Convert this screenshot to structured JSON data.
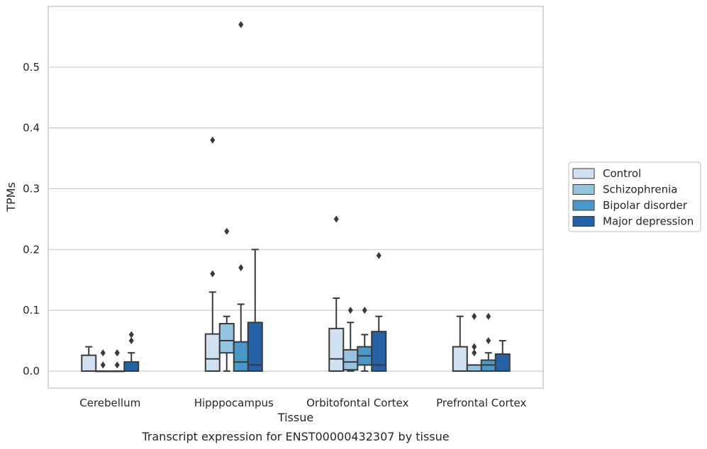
{
  "chart_data": {
    "type": "box",
    "xlabel": "Tissue",
    "ylabel": "TPMs",
    "caption": "Transcript expression for ENST00000432307 by tissue",
    "categories": [
      "Cerebellum",
      "Hipppocampus",
      "Orbitofontal Cortex",
      "Prefrontal Cortex"
    ],
    "ylim": [
      -0.028,
      0.6
    ],
    "yticks": [
      {
        "value": 0.0,
        "label": "0.0"
      },
      {
        "value": 0.1,
        "label": "0.1"
      },
      {
        "value": 0.2,
        "label": "0.2"
      },
      {
        "value": 0.3,
        "label": "0.3"
      },
      {
        "value": 0.4,
        "label": "0.4"
      },
      {
        "value": 0.5,
        "label": "0.5"
      }
    ],
    "grid": "horizontal",
    "legend_position": "right",
    "series": [
      {
        "name": "Control",
        "color": "#d0e1f2",
        "boxes": [
          {
            "whislo": 0.0,
            "q1": 0.0,
            "med": 0.0,
            "q3": 0.026,
            "whishi": 0.04,
            "fliers": []
          },
          {
            "whislo": 0.0,
            "q1": 0.0,
            "med": 0.02,
            "q3": 0.061,
            "whishi": 0.13,
            "fliers": [
              0.16,
              0.38
            ]
          },
          {
            "whislo": 0.0,
            "q1": 0.0,
            "med": 0.02,
            "q3": 0.07,
            "whishi": 0.12,
            "fliers": [
              0.25
            ]
          },
          {
            "whislo": 0.0,
            "q1": 0.0,
            "med": 0.0,
            "q3": 0.04,
            "whishi": 0.09,
            "fliers": []
          }
        ]
      },
      {
        "name": "Schizophrenia",
        "color": "#94c4df",
        "boxes": [
          {
            "whislo": 0.0,
            "q1": 0.0,
            "med": 0.0,
            "q3": 0.0,
            "whishi": 0.0,
            "fliers": [
              0.01,
              0.03
            ]
          },
          {
            "whislo": 0.0,
            "q1": 0.03,
            "med": 0.05,
            "q3": 0.078,
            "whishi": 0.09,
            "fliers": [
              0.23
            ]
          },
          {
            "whislo": 0.0,
            "q1": 0.002,
            "med": 0.015,
            "q3": 0.035,
            "whishi": 0.08,
            "fliers": [
              0.1
            ]
          },
          {
            "whislo": 0.0,
            "q1": 0.0,
            "med": 0.0,
            "q3": 0.01,
            "whishi": 0.01,
            "fliers": [
              0.03,
              0.04,
              0.09
            ]
          }
        ]
      },
      {
        "name": "Bipolar disorder",
        "color": "#4a98c9",
        "boxes": [
          {
            "whislo": 0.0,
            "q1": 0.0,
            "med": 0.0,
            "q3": 0.0,
            "whishi": 0.0,
            "fliers": [
              0.01,
              0.03,
              0.03
            ]
          },
          {
            "whislo": 0.0,
            "q1": 0.0,
            "med": 0.015,
            "q3": 0.048,
            "whishi": 0.11,
            "fliers": [
              0.17,
              0.57
            ]
          },
          {
            "whislo": 0.0,
            "q1": 0.01,
            "med": 0.025,
            "q3": 0.04,
            "whishi": 0.06,
            "fliers": [
              0.1
            ]
          },
          {
            "whislo": 0.0,
            "q1": 0.0,
            "med": 0.01,
            "q3": 0.018,
            "whishi": 0.03,
            "fliers": [
              0.05,
              0.09
            ]
          }
        ]
      },
      {
        "name": "Major depression",
        "color": "#2362a7",
        "boxes": [
          {
            "whislo": 0.0,
            "q1": 0.0,
            "med": 0.0,
            "q3": 0.015,
            "whishi": 0.03,
            "fliers": [
              0.05,
              0.06
            ]
          },
          {
            "whislo": 0.0,
            "q1": 0.0,
            "med": 0.01,
            "q3": 0.08,
            "whishi": 0.2,
            "fliers": []
          },
          {
            "whislo": 0.0,
            "q1": 0.0,
            "med": 0.01,
            "q3": 0.065,
            "whishi": 0.09,
            "fliers": [
              0.19
            ]
          },
          {
            "whislo": 0.0,
            "q1": 0.0,
            "med": 0.0,
            "q3": 0.028,
            "whishi": 0.05,
            "fliers": []
          }
        ]
      }
    ]
  }
}
